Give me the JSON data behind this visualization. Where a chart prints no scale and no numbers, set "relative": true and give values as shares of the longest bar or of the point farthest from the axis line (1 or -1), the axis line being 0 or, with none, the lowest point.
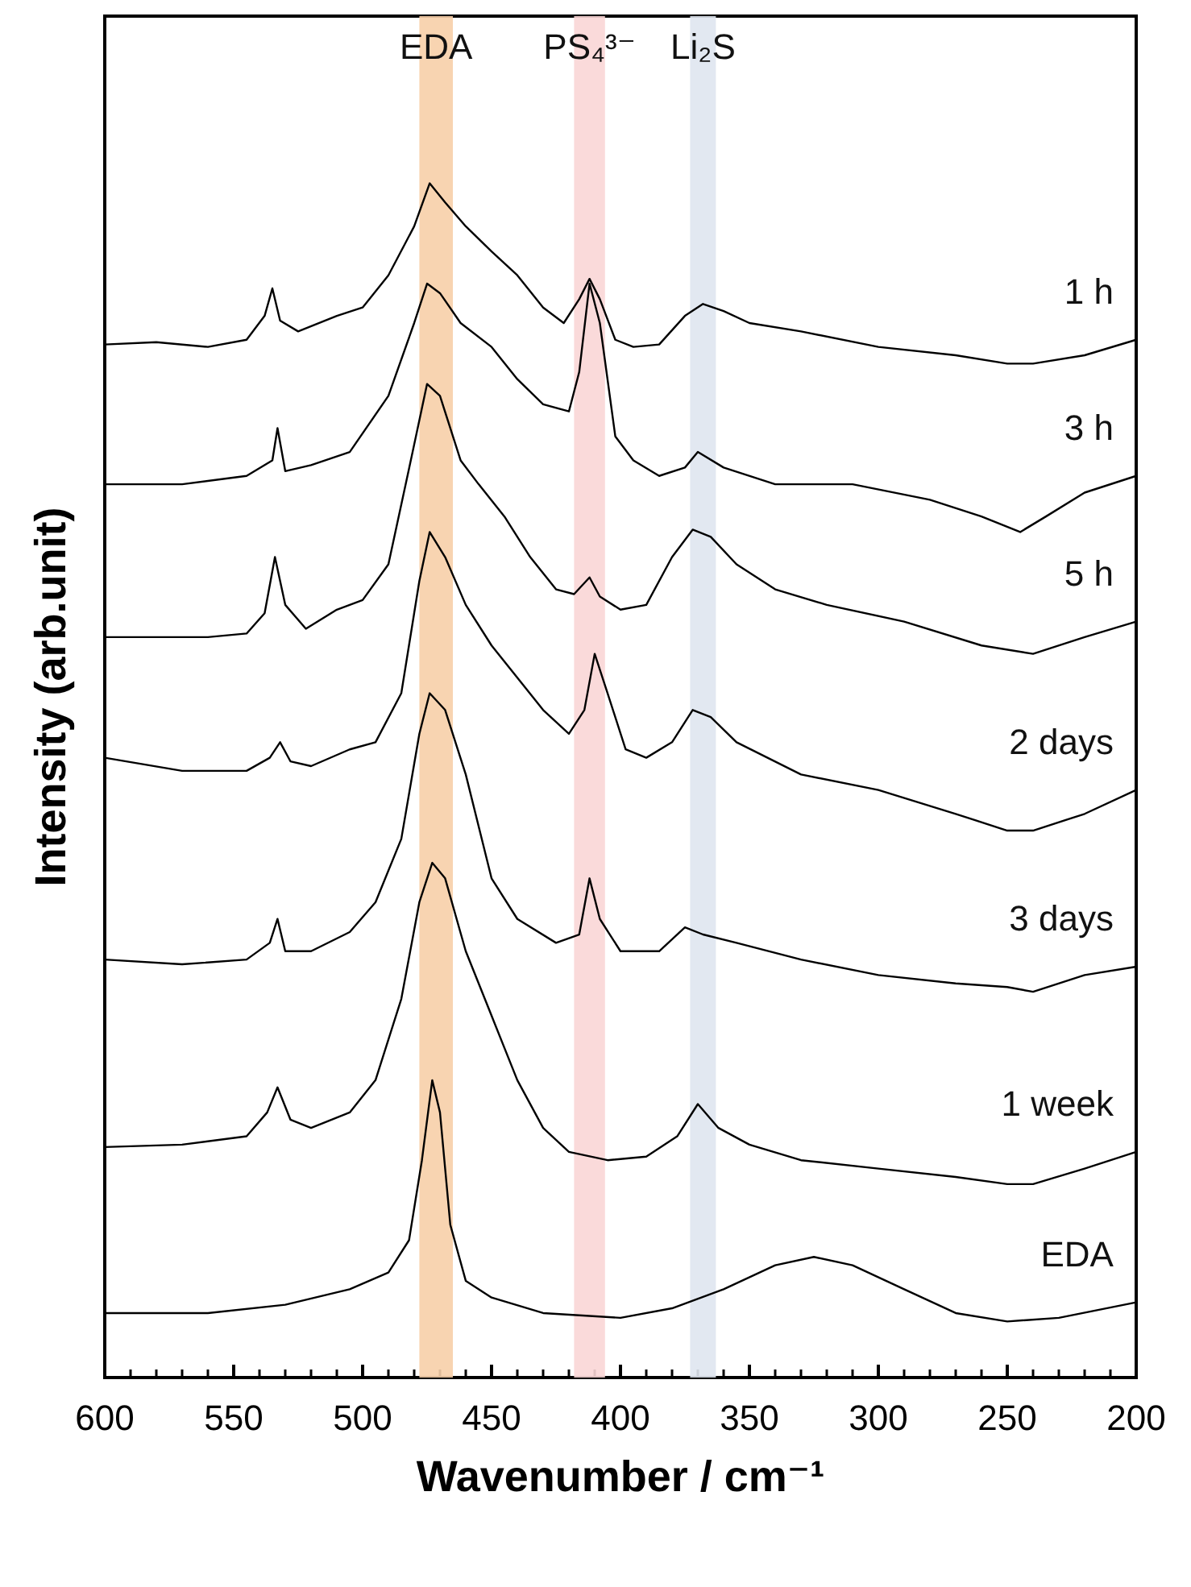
{
  "chart_data": {
    "type": "line",
    "xlabel": "Wavenumber / cm⁻¹",
    "ylabel": "Intensity (arb.unit)",
    "relative": true,
    "xlim": [
      600,
      200
    ],
    "xticks": [
      600,
      550,
      500,
      450,
      400,
      350,
      300,
      250,
      200
    ],
    "grid": false,
    "legend": false,
    "marker": "none",
    "line_style": "solid",
    "tick_labels": "x",
    "bands": [
      {
        "axis": "x",
        "from": 465,
        "to": 478,
        "label": "EDA",
        "color": "#f7cfa8"
      },
      {
        "axis": "x",
        "from": 406,
        "to": 418,
        "label": "PS₄³⁻",
        "color": "#f9d6d6"
      },
      {
        "axis": "x",
        "from": 363,
        "to": 373,
        "label": "Li₂S",
        "color": "#dfe5ef"
      }
    ],
    "series": [
      {
        "name": "1 h",
        "color": "#000000",
        "x": [
          600,
          580,
          560,
          545,
          538,
          535,
          532,
          525,
          510,
          500,
          490,
          480,
          474,
          468,
          460,
          450,
          440,
          430,
          422,
          416,
          412,
          408,
          402,
          395,
          385,
          375,
          368,
          360,
          350,
          330,
          300,
          270,
          250,
          240,
          220,
          200
        ],
        "values": [
          0.865,
          0.867,
          0.863,
          0.869,
          0.889,
          0.912,
          0.885,
          0.876,
          0.889,
          0.896,
          0.923,
          0.964,
          1.0,
          0.984,
          0.964,
          0.943,
          0.923,
          0.896,
          0.883,
          0.903,
          0.92,
          0.903,
          0.869,
          0.863,
          0.865,
          0.889,
          0.899,
          0.893,
          0.883,
          0.876,
          0.863,
          0.856,
          0.849,
          0.849,
          0.856,
          0.869
        ]
      },
      {
        "name": "3 h",
        "color": "#000000",
        "x": [
          600,
          570,
          545,
          535,
          533,
          530,
          520,
          505,
          490,
          480,
          475,
          470,
          462,
          450,
          440,
          430,
          420,
          416,
          412,
          408,
          402,
          395,
          385,
          375,
          370,
          360,
          340,
          310,
          280,
          260,
          245,
          235,
          220,
          200
        ],
        "values": [
          0.748,
          0.748,
          0.755,
          0.768,
          0.795,
          0.759,
          0.764,
          0.775,
          0.822,
          0.883,
          0.916,
          0.908,
          0.883,
          0.863,
          0.836,
          0.815,
          0.809,
          0.842,
          0.916,
          0.883,
          0.788,
          0.768,
          0.755,
          0.762,
          0.775,
          0.762,
          0.748,
          0.748,
          0.735,
          0.721,
          0.708,
          0.721,
          0.741,
          0.755
        ]
      },
      {
        "name": "5 h",
        "color": "#000000",
        "x": [
          600,
          560,
          545,
          538,
          534,
          530,
          522,
          510,
          500,
          490,
          482,
          475,
          470,
          462,
          455,
          445,
          435,
          425,
          418,
          412,
          408,
          400,
          390,
          380,
          372,
          365,
          355,
          340,
          320,
          290,
          260,
          240,
          220,
          200
        ],
        "values": [
          0.62,
          0.62,
          0.623,
          0.64,
          0.687,
          0.647,
          0.627,
          0.643,
          0.651,
          0.681,
          0.761,
          0.832,
          0.822,
          0.768,
          0.748,
          0.721,
          0.687,
          0.66,
          0.656,
          0.67,
          0.654,
          0.643,
          0.647,
          0.687,
          0.71,
          0.704,
          0.681,
          0.66,
          0.647,
          0.633,
          0.613,
          0.606,
          0.62,
          0.633
        ]
      },
      {
        "name": "2 days",
        "color": "#000000",
        "x": [
          600,
          570,
          545,
          536,
          532,
          528,
          520,
          505,
          495,
          485,
          478,
          474,
          468,
          460,
          450,
          440,
          430,
          420,
          414,
          410,
          405,
          398,
          390,
          380,
          372,
          365,
          355,
          330,
          300,
          270,
          250,
          240,
          220,
          200
        ],
        "values": [
          0.519,
          0.508,
          0.508,
          0.519,
          0.532,
          0.516,
          0.512,
          0.526,
          0.532,
          0.573,
          0.667,
          0.708,
          0.687,
          0.647,
          0.613,
          0.586,
          0.559,
          0.539,
          0.559,
          0.606,
          0.573,
          0.526,
          0.519,
          0.532,
          0.559,
          0.553,
          0.532,
          0.505,
          0.492,
          0.472,
          0.458,
          0.458,
          0.472,
          0.492
        ]
      },
      {
        "name": "3 days",
        "color": "#000000",
        "x": [
          600,
          570,
          545,
          536,
          533,
          530,
          520,
          505,
          495,
          485,
          478,
          474,
          468,
          460,
          450,
          440,
          425,
          416,
          412,
          408,
          400,
          385,
          375,
          368,
          355,
          330,
          300,
          270,
          250,
          240,
          220,
          200
        ],
        "values": [
          0.35,
          0.346,
          0.35,
          0.364,
          0.384,
          0.357,
          0.357,
          0.373,
          0.398,
          0.451,
          0.539,
          0.573,
          0.559,
          0.505,
          0.418,
          0.384,
          0.364,
          0.371,
          0.418,
          0.384,
          0.357,
          0.357,
          0.377,
          0.371,
          0.364,
          0.35,
          0.337,
          0.33,
          0.327,
          0.323,
          0.337,
          0.344
        ]
      },
      {
        "name": "1 week",
        "color": "#000000",
        "x": [
          600,
          570,
          545,
          537,
          533,
          528,
          520,
          505,
          495,
          485,
          478,
          473,
          468,
          460,
          450,
          440,
          430,
          420,
          405,
          390,
          378,
          370,
          362,
          350,
          330,
          300,
          270,
          250,
          240,
          220,
          200
        ],
        "values": [
          0.193,
          0.195,
          0.202,
          0.222,
          0.243,
          0.216,
          0.209,
          0.222,
          0.249,
          0.317,
          0.398,
          0.431,
          0.418,
          0.357,
          0.303,
          0.249,
          0.209,
          0.189,
          0.182,
          0.185,
          0.202,
          0.229,
          0.209,
          0.195,
          0.182,
          0.175,
          0.168,
          0.162,
          0.162,
          0.175,
          0.189
        ]
      },
      {
        "name": "EDA",
        "color": "#000000",
        "x": [
          600,
          560,
          530,
          505,
          490,
          482,
          477,
          473,
          470,
          466,
          460,
          450,
          430,
          400,
          380,
          360,
          340,
          325,
          310,
          290,
          270,
          250,
          230,
          200
        ],
        "values": [
          0.054,
          0.054,
          0.061,
          0.074,
          0.088,
          0.115,
          0.182,
          0.249,
          0.222,
          0.128,
          0.081,
          0.067,
          0.054,
          0.05,
          0.058,
          0.074,
          0.094,
          0.101,
          0.094,
          0.074,
          0.054,
          0.047,
          0.05,
          0.063
        ]
      }
    ]
  }
}
